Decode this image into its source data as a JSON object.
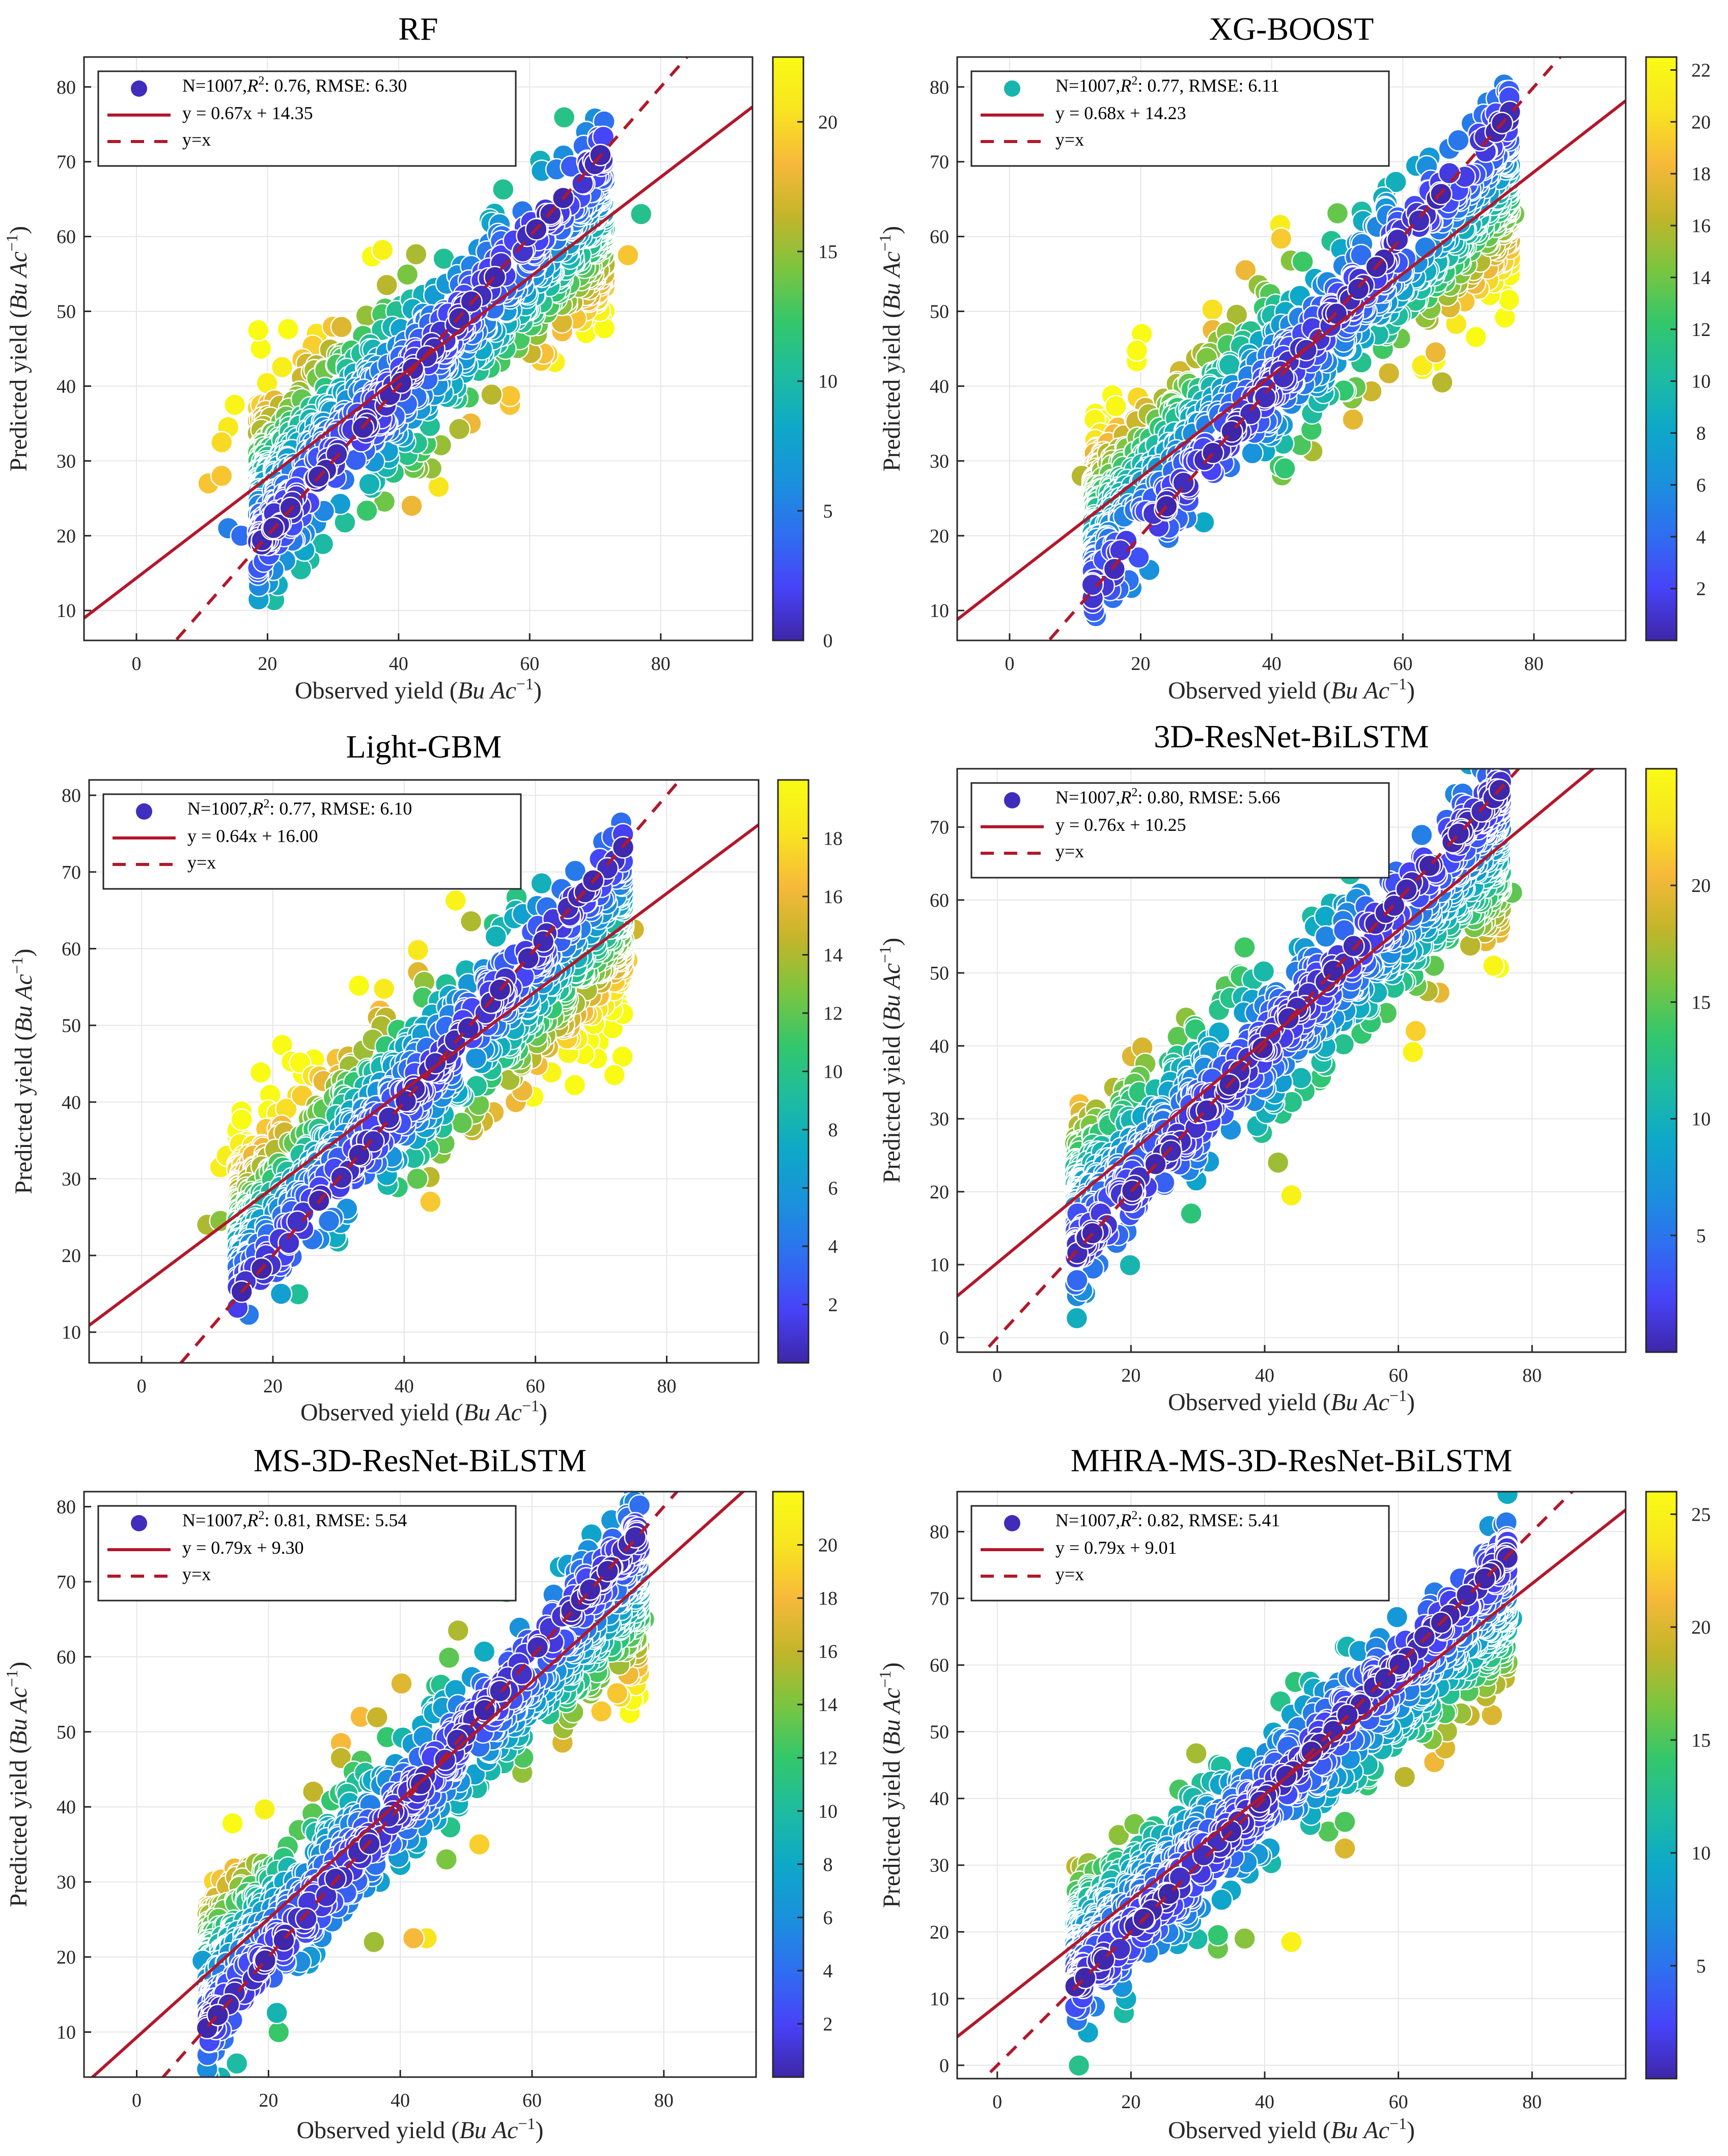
{
  "figure": {
    "colors": {
      "fit_line": "#b2182b",
      "axis": "#262626",
      "grid": "#e6e6e6",
      "marker_edge": "#ffffff"
    },
    "colormap": [
      "#3e26a8",
      "#4743f8",
      "#2f6ef0",
      "#1a91dc",
      "#0ea8c8",
      "#1ebca0",
      "#33c76b",
      "#7bc540",
      "#c3b52a",
      "#f7b93a",
      "#f8e420",
      "#f9fb15"
    ]
  },
  "chart_data": [
    {
      "type": "scatter",
      "title": "RF",
      "xlabel": "Observed yield",
      "ylabel": "Predicted yield",
      "unit": "Bu Ac",
      "unit_exp": "−1",
      "xlim": [
        -8,
        94
      ],
      "ylim": [
        6,
        84
      ],
      "xticks": [
        0,
        20,
        40,
        60,
        80
      ],
      "yticks": [
        10,
        20,
        30,
        40,
        50,
        60,
        70,
        80
      ],
      "clim": [
        0,
        22.5
      ],
      "cticks": [
        0,
        5,
        10,
        15,
        20
      ],
      "legend": {
        "n": "N=1007,",
        "r2": ": 0.76, RMSE: 6.30",
        "fit": "y = 0.67x + 14.35",
        "ref": "y=x",
        "marker_value": 0.5
      },
      "fit": {
        "slope": 0.67,
        "intercept": 14.35
      },
      "n_points": 1007,
      "rmse": 6.3,
      "cloud": {
        "xmin": 18,
        "xmax": 72,
        "seed": 11
      },
      "outliers": [
        [
          11,
          27,
          19
        ],
        [
          13,
          28,
          19
        ],
        [
          13,
          32.5,
          20
        ],
        [
          14,
          34.5,
          21
        ],
        [
          15,
          37.5,
          22
        ],
        [
          14,
          21,
          5
        ],
        [
          16,
          20,
          4
        ],
        [
          21,
          23,
          1
        ],
        [
          26,
          43,
          17
        ],
        [
          42,
          24,
          18
        ],
        [
          45,
          29,
          15
        ],
        [
          51,
          35,
          18
        ],
        [
          57,
          37.5,
          19
        ],
        [
          57,
          38.7,
          19
        ],
        [
          75,
          57.5,
          19
        ],
        [
          65,
          58.5,
          9
        ],
        [
          77,
          63,
          11
        ]
      ]
    },
    {
      "type": "scatter",
      "title": "XG-BOOST",
      "xlabel": "Observed yield",
      "ylabel": "Predicted yield",
      "unit": "Bu Ac",
      "unit_exp": "−1",
      "xlim": [
        -8,
        94
      ],
      "ylim": [
        6,
        84
      ],
      "xticks": [
        0,
        20,
        40,
        60,
        80
      ],
      "yticks": [
        10,
        20,
        30,
        40,
        50,
        60,
        70,
        80
      ],
      "clim": [
        0,
        22.5
      ],
      "cticks": [
        2,
        4,
        6,
        8,
        10,
        12,
        14,
        16,
        18,
        20,
        22
      ],
      "legend": {
        "n": "N=1007,",
        "r2": ": 0.77, RMSE: 6.11",
        "fit": "y = 0.68x + 14.23",
        "ref": "y=x",
        "marker_value": 9.5
      },
      "fit": {
        "slope": 0.68,
        "intercept": 14.23
      },
      "n_points": 1007,
      "rmse": 6.11,
      "cloud": {
        "xmin": 12,
        "xmax": 77,
        "seed": 23
      },
      "outliers": [
        [
          13,
          35.5,
          22
        ],
        [
          13,
          31,
          18
        ],
        [
          11,
          28,
          16
        ],
        [
          15,
          31,
          16
        ],
        [
          26,
          42,
          17
        ],
        [
          31,
          47.5,
          18
        ],
        [
          36,
          55.5,
          18
        ],
        [
          38,
          53.5,
          15
        ],
        [
          42,
          29,
          12
        ],
        [
          65,
          44.5,
          18
        ],
        [
          66,
          40.5,
          16
        ],
        [
          77,
          63,
          14
        ],
        [
          74,
          61,
          15
        ]
      ]
    },
    {
      "type": "scatter",
      "title": "Light-GBM",
      "xlabel": "Observed yield",
      "ylabel": "Predicted yield",
      "unit": "Bu Ac",
      "unit_exp": "−1",
      "xlim": [
        -8,
        94
      ],
      "ylim": [
        6,
        82
      ],
      "xticks": [
        0,
        20,
        40,
        60,
        80
      ],
      "yticks": [
        10,
        20,
        30,
        40,
        50,
        60,
        70,
        80
      ],
      "clim": [
        0,
        20
      ],
      "cticks": [
        2,
        4,
        6,
        8,
        10,
        12,
        14,
        16,
        18
      ],
      "legend": {
        "n": "N=1007,",
        "r2": ": 0.77, RMSE: 6.10",
        "fit": "y = 0.64x + 16.00",
        "ref": "y=x",
        "marker_value": 0.5
      },
      "fit": {
        "slope": 0.64,
        "intercept": 16.0
      },
      "n_points": 1007,
      "rmse": 6.1,
      "cloud": {
        "xmin": 14,
        "xmax": 74,
        "seed": 37
      },
      "outliers": [
        [
          12,
          31.5,
          19
        ],
        [
          13,
          33,
          19
        ],
        [
          15,
          34.5,
          19
        ],
        [
          16,
          31.5,
          17
        ],
        [
          17,
          33,
          16
        ],
        [
          19,
          36.5,
          17
        ],
        [
          10,
          24,
          14
        ],
        [
          12,
          24.5,
          13
        ],
        [
          30,
          43.5,
          16
        ],
        [
          36,
          51,
          15
        ],
        [
          44,
          27,
          17
        ],
        [
          42,
          30,
          12
        ],
        [
          52,
          37.5,
          15
        ],
        [
          57,
          40,
          16
        ],
        [
          58,
          41.5,
          16
        ],
        [
          75,
          62.5,
          15
        ],
        [
          74,
          58.5,
          17
        ]
      ]
    },
    {
      "type": "scatter",
      "title": "3D-ResNet-BiLSTM",
      "xlabel": "Observed yield",
      "ylabel": "Predicted yield",
      "unit": "Bu Ac",
      "unit_exp": "−1",
      "xlim": [
        -6,
        94
      ],
      "ylim": [
        -2,
        78
      ],
      "xticks": [
        0,
        20,
        40,
        60,
        80
      ],
      "yticks": [
        0,
        10,
        20,
        30,
        40,
        50,
        60,
        70
      ],
      "clim": [
        0,
        25
      ],
      "cticks": [
        5,
        10,
        15,
        20
      ],
      "legend": {
        "n": "N=1007,",
        "r2": ": 0.80, RMSE: 5.66",
        "fit": "y = 0.76x + 10.25",
        "ref": "y=x",
        "marker_value": 0.5
      },
      "fit": {
        "slope": 0.76,
        "intercept": 10.25
      },
      "n_points": 1007,
      "rmse": 5.66,
      "cloud": {
        "xmin": 11,
        "xmax": 76,
        "seed": 53
      },
      "outliers": [
        [
          44,
          19.5,
          24
        ],
        [
          42,
          24,
          17
        ],
        [
          29,
          17,
          13
        ],
        [
          37,
          53.5,
          14
        ],
        [
          75,
          55.5,
          20
        ],
        [
          77,
          61,
          15
        ],
        [
          12,
          17,
          3
        ],
        [
          16,
          15,
          2
        ]
      ]
    },
    {
      "type": "scatter",
      "title": "MS-3D-ResNet-BiLSTM",
      "xlabel": "Observed yield",
      "ylabel": "Predicted yield",
      "unit": "Bu Ac",
      "unit_exp": "−1",
      "xlim": [
        -8,
        94
      ],
      "ylim": [
        4,
        82
      ],
      "xticks": [
        0,
        20,
        40,
        60,
        80
      ],
      "yticks": [
        10,
        20,
        30,
        40,
        50,
        60,
        70,
        80
      ],
      "clim": [
        0,
        22
      ],
      "cticks": [
        2,
        4,
        6,
        8,
        10,
        12,
        14,
        16,
        18,
        20
      ],
      "legend": {
        "n": "N=1007,",
        "r2": ": 0.81, RMSE: 5.54",
        "fit": "y = 0.79x + 9.30",
        "ref": "y=x",
        "marker_value": 0.5
      },
      "fit": {
        "slope": 0.79,
        "intercept": 9.3
      },
      "n_points": 1007,
      "rmse": 5.54,
      "cloud": {
        "xmin": 10,
        "xmax": 77,
        "seed": 71
      },
      "outliers": [
        [
          34,
          52,
          18
        ],
        [
          31,
          48.5,
          18
        ],
        [
          31,
          46.5,
          16
        ],
        [
          44,
          22.5,
          20
        ],
        [
          42,
          22.5,
          18
        ],
        [
          52,
          35,
          19
        ],
        [
          36,
          22,
          15
        ],
        [
          47,
          33,
          14
        ],
        [
          75,
          57.5,
          19
        ],
        [
          77,
          65,
          13
        ],
        [
          10,
          19.5,
          7
        ]
      ]
    },
    {
      "type": "scatter",
      "title": "MHRA-MS-3D-ResNet-BiLSTM",
      "xlabel": "Observed yield",
      "ylabel": "Predicted yield",
      "unit": "Bu Ac",
      "unit_exp": "−1",
      "xlim": [
        -6,
        94
      ],
      "ylim": [
        -2,
        86
      ],
      "xticks": [
        0,
        20,
        40,
        60,
        80
      ],
      "yticks": [
        0,
        10,
        20,
        30,
        40,
        50,
        60,
        70,
        80
      ],
      "clim": [
        0,
        26
      ],
      "cticks": [
        5,
        10,
        15,
        20,
        25
      ],
      "legend": {
        "n": "N=1007,",
        "r2": ": 0.82, RMSE: 5.41",
        "fit": "y = 0.79x + 9.01",
        "ref": "y=x",
        "marker_value": 0.5
      },
      "fit": {
        "slope": 0.79,
        "intercept": 9.01
      },
      "n_points": 1007,
      "rmse": 5.41,
      "cloud": {
        "xmin": 11,
        "xmax": 77,
        "seed": 89
      },
      "outliers": [
        [
          44,
          18.5,
          25
        ],
        [
          52,
          32.5,
          20
        ],
        [
          37,
          19,
          17
        ],
        [
          33,
          17.5,
          16
        ],
        [
          33,
          19.5,
          14
        ],
        [
          52,
          36.5,
          15
        ],
        [
          67,
          47.5,
          20
        ],
        [
          74,
          52.5,
          20
        ],
        [
          77,
          67,
          10
        ],
        [
          17,
          14.5,
          2
        ]
      ]
    }
  ]
}
